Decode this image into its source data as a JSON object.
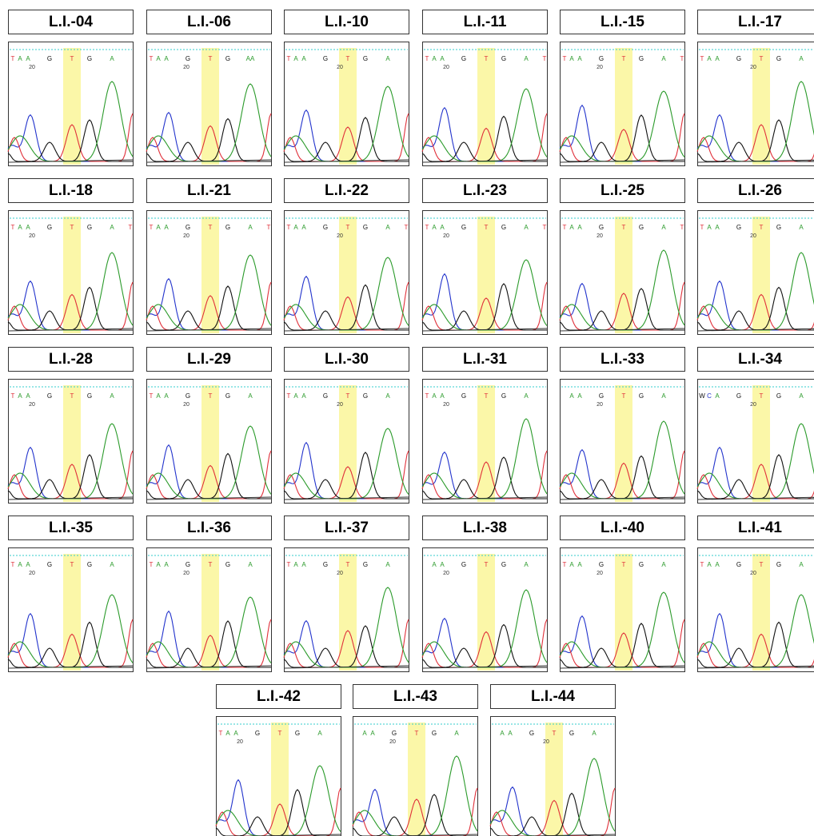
{
  "position_label": "20",
  "panels": [
    {
      "label": "L.I.-04",
      "bases": [
        "T",
        "A",
        "A",
        "G",
        "T",
        "G",
        "A"
      ]
    },
    {
      "label": "L.I.-06",
      "bases": [
        "T",
        "A",
        "A",
        "G",
        "T",
        "G",
        "AA"
      ]
    },
    {
      "label": "L.I.-10",
      "bases": [
        "T",
        "A",
        "A",
        "G",
        "T",
        "G",
        "A"
      ]
    },
    {
      "label": "L.I.-11",
      "bases": [
        "T",
        "A",
        "A",
        "G",
        "T",
        "G",
        "A",
        "T"
      ]
    },
    {
      "label": "L.I.-15",
      "bases": [
        "T",
        "A",
        "A",
        "G",
        "T",
        "G",
        "A",
        "T"
      ]
    },
    {
      "label": "L.I.-17",
      "bases": [
        "T",
        "A",
        "A",
        "G",
        "T",
        "G",
        "A"
      ]
    },
    {
      "label": "L.I.-18",
      "bases": [
        "T",
        "A",
        "A",
        "G",
        "T",
        "G",
        "A",
        "T"
      ]
    },
    {
      "label": "L.I.-21",
      "bases": [
        "T",
        "A",
        "A",
        "G",
        "T",
        "G",
        "A",
        "T"
      ]
    },
    {
      "label": "L.I.-22",
      "bases": [
        "T",
        "A",
        "A",
        "G",
        "T",
        "G",
        "A",
        "T"
      ]
    },
    {
      "label": "L.I.-23",
      "bases": [
        "T",
        "A",
        "A",
        "G",
        "T",
        "G",
        "A",
        "T"
      ]
    },
    {
      "label": "L.I.-25",
      "bases": [
        "T",
        "A",
        "A",
        "G",
        "T",
        "G",
        "A",
        "T"
      ]
    },
    {
      "label": "L.I.-26",
      "bases": [
        "T",
        "A",
        "A",
        "G",
        "T",
        "G",
        "A"
      ]
    },
    {
      "label": "L.I.-28",
      "bases": [
        "T",
        "A",
        "A",
        "G",
        "T",
        "G",
        "A"
      ]
    },
    {
      "label": "L.I.-29",
      "bases": [
        "T",
        "A",
        "A",
        "G",
        "T",
        "G",
        "A"
      ]
    },
    {
      "label": "L.I.-30",
      "bases": [
        "T",
        "A",
        "A",
        "G",
        "T",
        "G",
        "A"
      ]
    },
    {
      "label": "L.I.-31",
      "bases": [
        "T",
        "A",
        "A",
        "G",
        "T",
        "G",
        "A"
      ]
    },
    {
      "label": "L.I.-33",
      "bases": [
        "A",
        "A",
        "G",
        "T",
        "G",
        "A"
      ]
    },
    {
      "label": "L.I.-34",
      "bases": [
        "W",
        "C",
        "A",
        "G",
        "T",
        "G",
        "A"
      ]
    },
    {
      "label": "L.I.-35",
      "bases": [
        "T",
        "A",
        "A",
        "G",
        "T",
        "G",
        "A"
      ]
    },
    {
      "label": "L.I.-36",
      "bases": [
        "T",
        "A",
        "A",
        "G",
        "T",
        "G",
        "A"
      ]
    },
    {
      "label": "L.I.-37",
      "bases": [
        "T",
        "A",
        "A",
        "G",
        "T",
        "G",
        "A"
      ]
    },
    {
      "label": "L.I.-38",
      "bases": [
        "A",
        "A",
        "G",
        "T",
        "G",
        "A"
      ]
    },
    {
      "label": "L.I.-40",
      "bases": [
        "T",
        "A",
        "A",
        "G",
        "T",
        "G",
        "A"
      ]
    },
    {
      "label": "L.I.-41",
      "bases": [
        "T",
        "A",
        "A",
        "G",
        "T",
        "G",
        "A"
      ]
    },
    {
      "label": "L.I.-42",
      "bases": [
        "T",
        "A",
        "A",
        "G",
        "T",
        "G",
        "A"
      ]
    },
    {
      "label": "L.I.-43",
      "bases": [
        "A",
        "A",
        "G",
        "T",
        "G",
        "A"
      ]
    },
    {
      "label": "L.I.-44",
      "bases": [
        "A",
        "A",
        "G",
        "T",
        "G",
        "A"
      ]
    }
  ]
}
